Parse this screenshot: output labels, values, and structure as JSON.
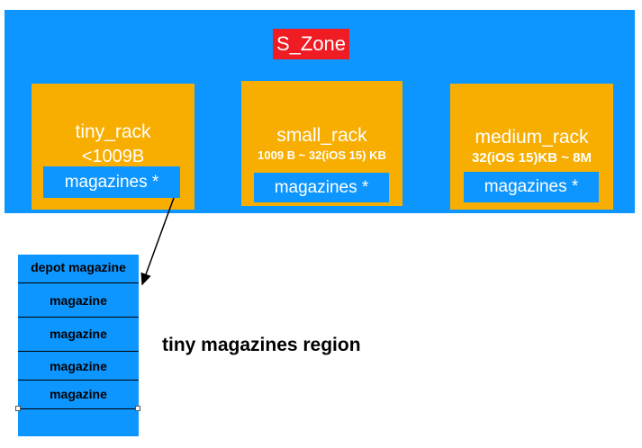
{
  "zone": {
    "title": "S_Zone",
    "color": "#0d96ff",
    "title_color": "#ef1c24"
  },
  "racks": {
    "tiny": {
      "name": "tiny_rack",
      "range": "<1009B",
      "magazines": "magazines *"
    },
    "small": {
      "name": "small_rack",
      "range": "1009 B ~ 32(iOS 15) KB",
      "magazines": "magazines *"
    },
    "medium": {
      "name": "medium_rack",
      "range": "32(iOS 15)KB ~ 8M",
      "magazines": "magazines *"
    }
  },
  "region": {
    "label": "tiny magazines region",
    "slots": [
      "depot magazine",
      "magazine",
      "magazine",
      "magazine",
      "magazine"
    ]
  },
  "colors": {
    "rack": "#f8ae00",
    "blue": "#0d96ff",
    "arrow": "#000000"
  }
}
